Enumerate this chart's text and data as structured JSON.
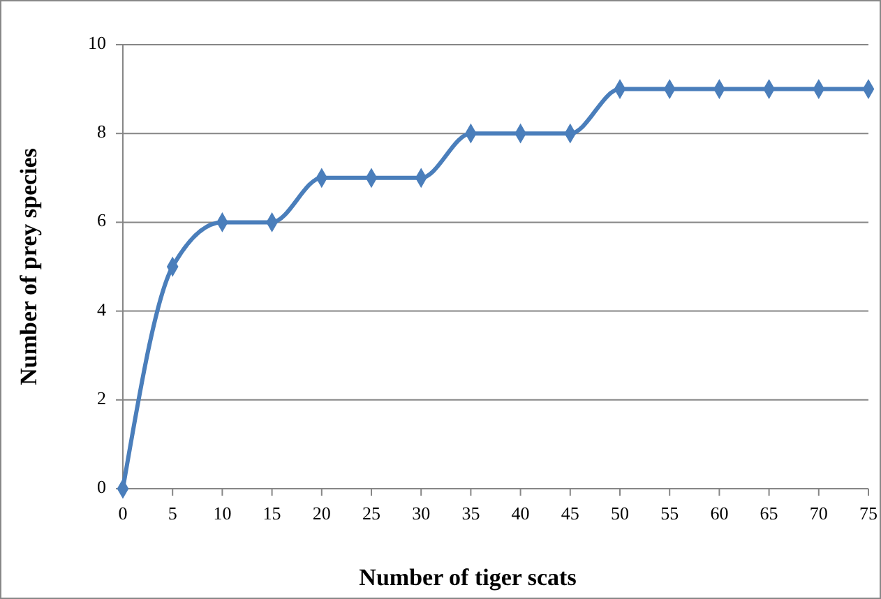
{
  "chart_data": {
    "type": "line",
    "xlabel": "Number of tiger scats",
    "ylabel": "Number of prey species",
    "x": [
      0,
      5,
      10,
      15,
      20,
      25,
      30,
      35,
      40,
      45,
      50,
      55,
      60,
      65,
      70,
      75
    ],
    "series": [
      {
        "color": "#4a7ebb",
        "values": [
          0,
          5,
          6,
          6,
          7,
          7,
          7,
          8,
          8,
          8,
          9,
          9,
          9,
          9,
          9,
          9
        ]
      }
    ],
    "xlim": [
      0,
      75
    ],
    "xticks": [
      0,
      5,
      10,
      15,
      20,
      25,
      30,
      35,
      40,
      45,
      50,
      55,
      60,
      65,
      70,
      75
    ],
    "ylim": [
      0,
      10
    ],
    "yticks": [
      0,
      2,
      4,
      6,
      8,
      10
    ],
    "grid": "y",
    "marker": "diamond",
    "line_style": "solid"
  }
}
